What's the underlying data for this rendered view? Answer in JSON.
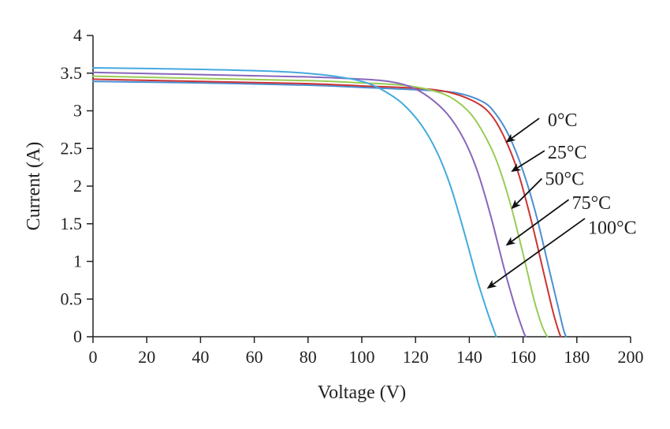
{
  "chart_data": {
    "type": "line",
    "title": "",
    "xlabel": "Voltage (V)",
    "ylabel": "Current (A)",
    "xlim": [
      0,
      200
    ],
    "ylim": [
      0,
      4
    ],
    "xticks": [
      0,
      20,
      40,
      60,
      80,
      100,
      120,
      140,
      160,
      180,
      200
    ],
    "yticks": [
      0,
      0.5,
      1,
      1.5,
      2,
      2.5,
      3,
      3.5,
      4
    ],
    "ytick_labels": [
      "0",
      "0.5",
      "1",
      "1.5",
      "2",
      "2.5",
      "3",
      "3.5",
      "4"
    ],
    "grid": false,
    "legend": "none (curves annotated with arrows)",
    "series": [
      {
        "name": "0°C",
        "color": "#4a8fd4",
        "x": [
          0,
          40,
          80,
          100,
          120,
          135,
          145,
          150,
          155,
          160,
          165,
          170,
          173,
          175,
          176
        ],
        "y": [
          3.39,
          3.37,
          3.34,
          3.31,
          3.28,
          3.24,
          3.12,
          2.95,
          2.65,
          2.2,
          1.6,
          0.85,
          0.4,
          0.1,
          0
        ]
      },
      {
        "name": "25°C",
        "color": "#cc3333",
        "x": [
          0,
          40,
          80,
          100,
          120,
          132,
          142,
          148,
          153,
          158,
          163,
          168,
          171,
          173,
          174
        ],
        "y": [
          3.42,
          3.39,
          3.36,
          3.33,
          3.3,
          3.25,
          3.12,
          2.95,
          2.65,
          2.2,
          1.55,
          0.8,
          0.35,
          0.1,
          0
        ]
      },
      {
        "name": "50°C",
        "color": "#99cc55",
        "x": [
          0,
          40,
          80,
          100,
          115,
          125,
          133,
          140,
          145,
          150,
          155,
          160,
          164,
          167,
          169
        ],
        "y": [
          3.46,
          3.43,
          3.4,
          3.37,
          3.34,
          3.28,
          3.18,
          2.98,
          2.72,
          2.35,
          1.8,
          1.1,
          0.5,
          0.15,
          0
        ]
      },
      {
        "name": "75°C",
        "color": "#8866bb",
        "x": [
          0,
          40,
          80,
          100,
          110,
          118,
          125,
          132,
          138,
          143,
          148,
          153,
          157,
          160,
          161
        ],
        "y": [
          3.51,
          3.48,
          3.45,
          3.42,
          3.39,
          3.32,
          3.18,
          2.95,
          2.62,
          2.2,
          1.6,
          0.9,
          0.4,
          0.08,
          0
        ]
      },
      {
        "name": "100°C",
        "color": "#44aadd",
        "x": [
          0,
          40,
          70,
          85,
          95,
          102,
          108,
          115,
          122,
          128,
          133,
          138,
          143,
          147,
          149,
          150
        ],
        "y": [
          3.57,
          3.55,
          3.52,
          3.48,
          3.43,
          3.37,
          3.27,
          3.1,
          2.82,
          2.45,
          2.0,
          1.4,
          0.75,
          0.3,
          0.1,
          0
        ]
      }
    ],
    "annotations": [
      {
        "label": "0°C",
        "text_x": 168,
        "text_y": 2.88,
        "arrow_from": [
          166,
          2.9
        ],
        "arrow_to": [
          154,
          2.59
        ]
      },
      {
        "label": "25°C",
        "text_x": 168,
        "text_y": 2.45,
        "arrow_from": [
          168,
          2.47
        ],
        "arrow_to": [
          156,
          2.2
        ]
      },
      {
        "label": "50°C",
        "text_x": 167,
        "text_y": 2.1,
        "arrow_from": [
          167,
          2.1
        ],
        "arrow_to": [
          156,
          1.71
        ]
      },
      {
        "label": "75°C",
        "text_x": 177,
        "text_y": 1.78,
        "arrow_from": [
          177,
          1.82
        ],
        "arrow_to": [
          154,
          1.22
        ]
      },
      {
        "label": "100°C",
        "text_x": 183,
        "text_y": 1.45,
        "arrow_from": [
          183,
          1.57
        ],
        "arrow_to": [
          147,
          0.65
        ]
      }
    ]
  }
}
